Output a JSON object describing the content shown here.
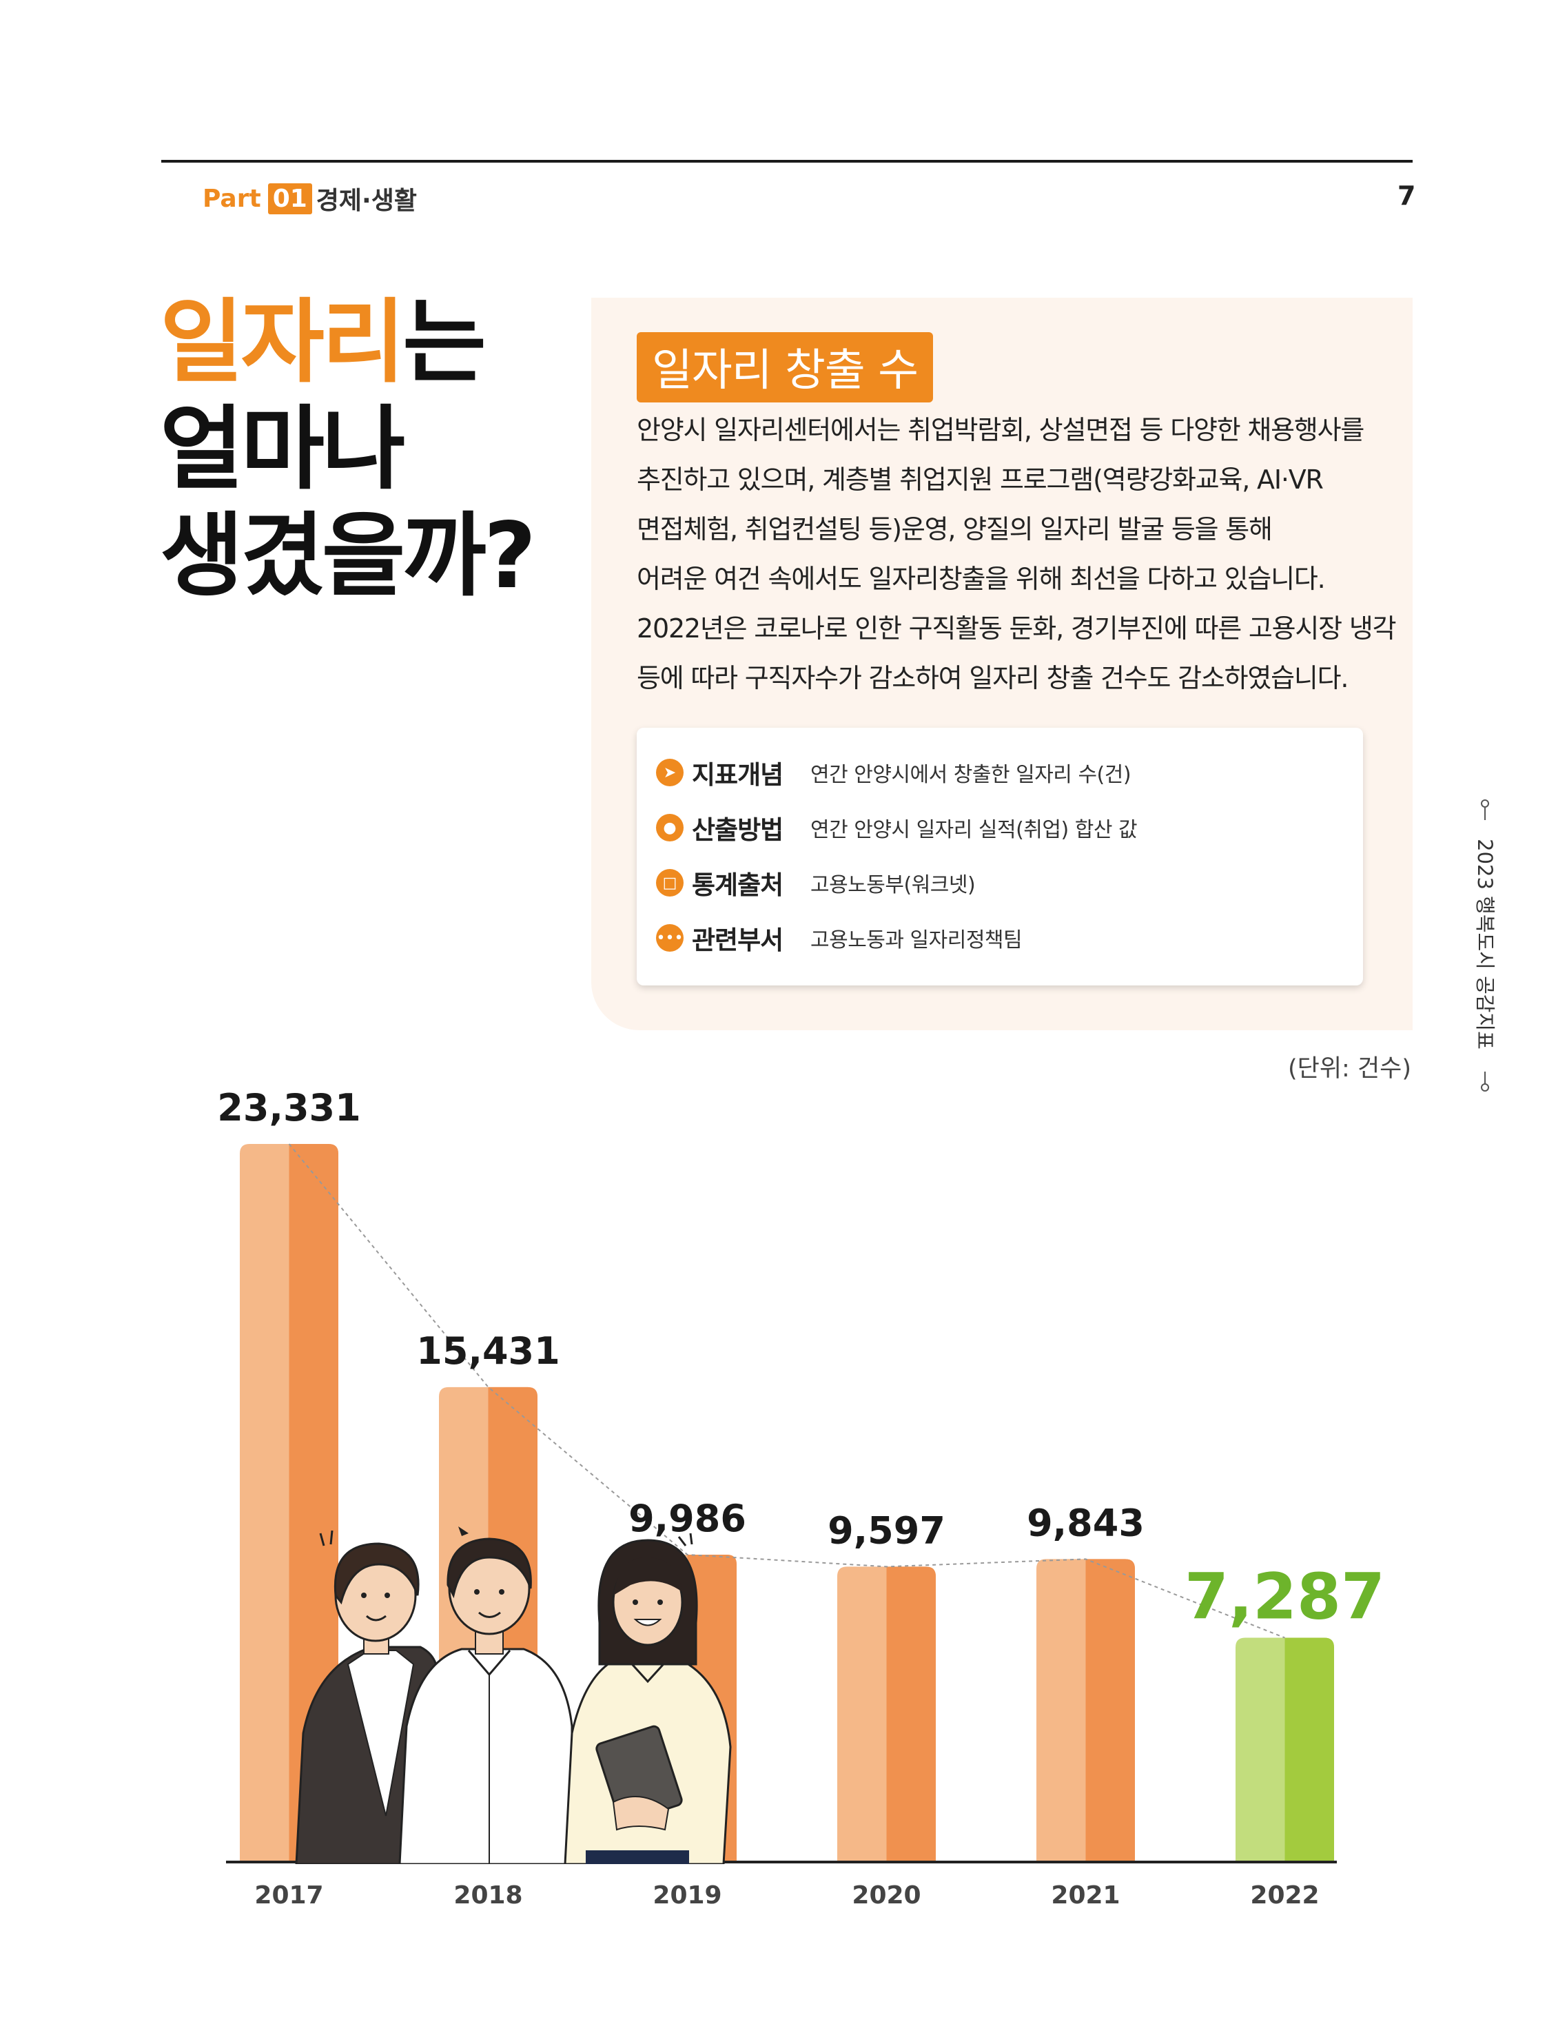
{
  "header": {
    "part_word": "Part",
    "part_num": "01",
    "section": "경제·생활",
    "page_number": "7"
  },
  "headline": {
    "highlight": "일자리",
    "line1_rest": "는",
    "line2": "얼마나",
    "line3": "생겼을까?"
  },
  "panel": {
    "badge": "일자리 창출 수",
    "description": [
      "안양시 일자리센터에서는 취업박람회, 상설면접 등 다양한 채용행사를",
      "추진하고 있으며, 계층별 취업지원 프로그램(역량강화교육, AI·VR",
      "면접체험, 취업컨설팅 등)운영, 양질의 일자리 발굴 등을 통해",
      "어려운 여건 속에서도 일자리창출을 위해 최선을 다하고 있습니다.",
      "2022년은 코로나로 인한 구직활동 둔화, 경기부진에 따른 고용시장 냉각",
      "등에 따라 구직자수가 감소하여 일자리 창출 건수도 감소하였습니다."
    ],
    "info": [
      {
        "label": "지표개념",
        "value": "연간 안양시에서 창출한 일자리 수(건)",
        "icon": "paper-plane-icon"
      },
      {
        "label": "산출방법",
        "value": "연간 안양시 일자리 실적(취업) 합산 값",
        "icon": "chat-bubbles-icon"
      },
      {
        "label": "통계출처",
        "value": "고용노동부(워크넷)",
        "icon": "monitor-icon"
      },
      {
        "label": "관련부서",
        "value": "고용노동과 일자리정책팀",
        "icon": "people-group-icon"
      }
    ]
  },
  "side_label": "2023 행복도시 공감지표",
  "chart_data": {
    "type": "bar",
    "unit_label": "(단위: 건수)",
    "categories": [
      "2017",
      "2018",
      "2019",
      "2020",
      "2021",
      "2022"
    ],
    "values": [
      23331,
      15431,
      9986,
      9597,
      9843,
      7287
    ],
    "value_labels": [
      "23,331",
      "15,431",
      "9,986",
      "9,597",
      "9,843",
      "7,287"
    ],
    "highlight_index": 5,
    "trend_line": true,
    "colors": {
      "bar_light": "#f5b888",
      "bar_dark": "#f0914f",
      "highlight_light": "#c2dd7d",
      "highlight_dark": "#a3cb3e",
      "highlight_label": "#6db42b",
      "label": "#1a1a1a"
    }
  }
}
